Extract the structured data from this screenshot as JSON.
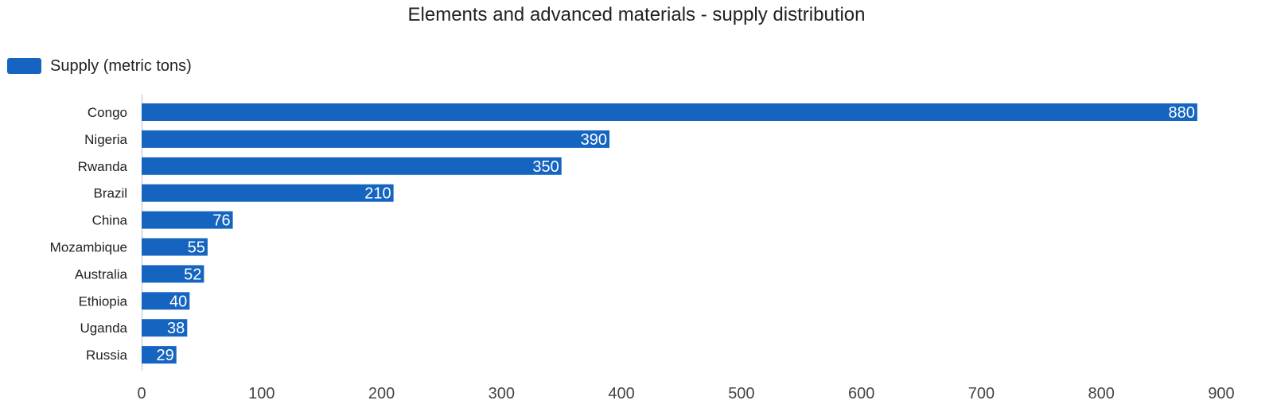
{
  "chart_data": {
    "type": "bar",
    "orientation": "horizontal",
    "title": "Elements and advanced materials - supply distribution",
    "legend": {
      "position": "top-left",
      "entries": [
        "Supply (metric tons)"
      ]
    },
    "categories": [
      "Congo",
      "Nigeria",
      "Rwanda",
      "Brazil",
      "China",
      "Mozambique",
      "Australia",
      "Ethiopia",
      "Uganda",
      "Russia"
    ],
    "series": [
      {
        "name": "Supply (metric tons)",
        "color": "#1565c0",
        "values": [
          880,
          390,
          350,
          210,
          76,
          55,
          52,
          40,
          38,
          29
        ]
      }
    ],
    "xlim": [
      0,
      900
    ],
    "xticks": [
      0,
      100,
      200,
      300,
      400,
      500,
      600,
      700,
      800,
      900
    ],
    "xlabel": "",
    "ylabel": "",
    "grid": false,
    "data_labels": true
  }
}
